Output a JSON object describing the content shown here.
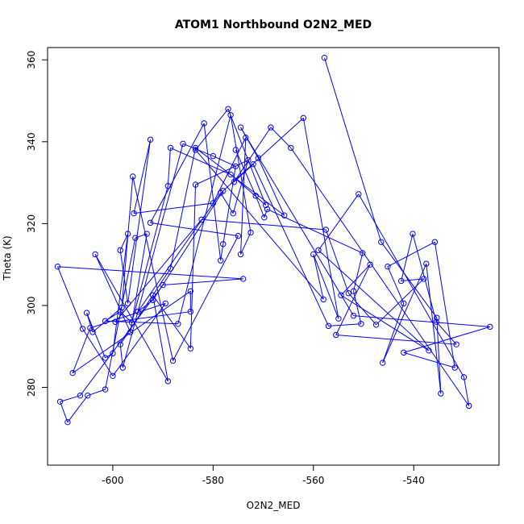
{
  "chart_data": {
    "type": "scatter",
    "title": "ATOM1 Northbound O2N2_MED",
    "xlabel": "O2N2_MED",
    "ylabel": "Theta (K)",
    "xlim": [
      -613,
      -523
    ],
    "ylim": [
      261,
      363
    ],
    "xticks": [
      -600,
      -580,
      -560,
      -540
    ],
    "yticks": [
      280,
      300,
      320,
      340,
      360
    ],
    "grid": false,
    "color": "#0000ff",
    "series": [
      {
        "mode": "lines+markers",
        "x": [
          -557.8,
          -546.5,
          -535.4,
          -534.6,
          -537.5,
          -546.2,
          -542,
          -545.2,
          -535.8,
          -531.8,
          -542,
          -524.8,
          -552,
          -574.5,
          -571,
          -565.8,
          -583.5,
          -588.5,
          -598.5,
          -598,
          -586,
          -580,
          -575.5,
          -578,
          -578.5,
          -581.8,
          -592.5,
          -575,
          -588,
          -596,
          -598.2,
          -604,
          -605.2,
          -601.5,
          -600,
          -597,
          -598.5,
          -597,
          -592.5,
          -595.8,
          -580,
          -573.5,
          -574.5,
          -572.5,
          -576.5,
          -587,
          -601.5,
          -598.5,
          -596.2,
          -589,
          -588.5,
          -576.5,
          -569.5,
          -577,
          -583.5,
          -558,
          -560,
          -555,
          -562,
          -578,
          -592,
          -595,
          -578.5,
          -576,
          -573,
          -583.5,
          -584.5,
          -592,
          -589,
          -603.5,
          -596.5,
          -593.2,
          -595.5,
          -601.5,
          -605,
          -609,
          -610.5,
          -606.5,
          -590,
          -574,
          -611,
          -606,
          -600,
          -589.5,
          -604.5,
          -608,
          -584.5,
          -584.5,
          -599.5,
          -582.3,
          -557.5,
          -553,
          -547.5,
          -538,
          -542.5,
          -540.2,
          -535.5,
          -531.5,
          -555.5,
          -548.7,
          -554.5,
          -537,
          -559,
          -551,
          -530,
          -529,
          -564.5,
          -568.5,
          -575.8,
          -572,
          -557,
          -550.5,
          -552,
          -550.2,
          -569.2,
          -569.8,
          -571.5,
          -575.5
        ],
        "y": [
          360.5,
          315.5,
          297,
          278.5,
          310.2,
          286,
          300.5,
          309.5,
          315.5,
          284.8,
          288.5,
          294.8,
          297.5,
          343.5,
          336,
          322,
          338.5,
          309,
          290.5,
          284.8,
          339.5,
          336.5,
          334,
          315,
          311,
          344.5,
          320.2,
          317,
          286.5,
          331.5,
          299.5,
          293.5,
          298.2,
          287.2,
          288.3,
          317.5,
          313.5,
          300.5,
          340.5,
          322.5,
          325,
          341,
          312.5,
          317.8,
          346.5,
          295.5,
          296.2,
          298.5,
          295.8,
          329.2,
          338.5,
          332,
          324.5,
          348,
          338,
          301.5,
          312.5,
          296.8,
          345.8,
          328,
          301.3,
          298.5,
          327.5,
          322.5,
          335.5,
          329.5,
          289.5,
          302.5,
          281.5,
          312.5,
          293.5,
          317.5,
          316.5,
          279.5,
          278,
          271.5,
          276.5,
          278,
          305,
          306.5,
          309.5,
          294.3,
          282.8,
          300.5,
          294.5,
          283.5,
          303.5,
          298.5,
          296,
          321,
          318.5,
          303,
          295.3,
          306.5,
          306,
          317.5,
          296,
          290.5,
          292.8,
          310,
          302.5,
          289,
          313.5,
          327.2,
          282.5,
          275.5,
          338.5,
          343.5,
          330.2,
          334.5,
          295,
          295.5,
          303.5,
          312.8,
          323.5,
          321.5,
          326.8,
          338
        ]
      }
    ]
  }
}
